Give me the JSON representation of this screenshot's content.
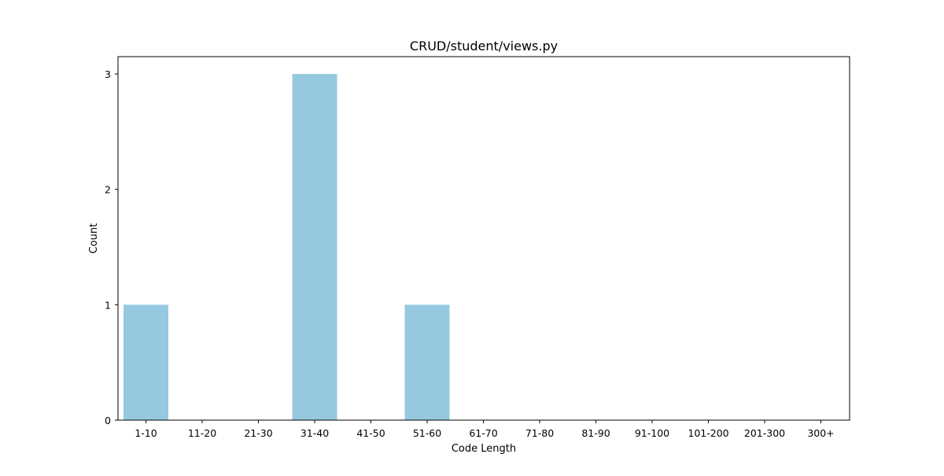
{
  "chart_data": {
    "type": "bar",
    "title": "CRUD/student/views.py",
    "xlabel": "Code Length",
    "ylabel": "Count",
    "categories": [
      "1-10",
      "11-20",
      "21-30",
      "31-40",
      "41-50",
      "51-60",
      "61-70",
      "71-80",
      "81-90",
      "91-100",
      "101-200",
      "201-300",
      "300+"
    ],
    "values": [
      1,
      0,
      0,
      3,
      0,
      1,
      0,
      0,
      0,
      0,
      0,
      0,
      0
    ],
    "yticks": [
      0,
      1,
      2,
      3
    ],
    "ylim": [
      0,
      3.15
    ],
    "bar_color": "#96c9df",
    "grid": false,
    "legend": "none"
  }
}
